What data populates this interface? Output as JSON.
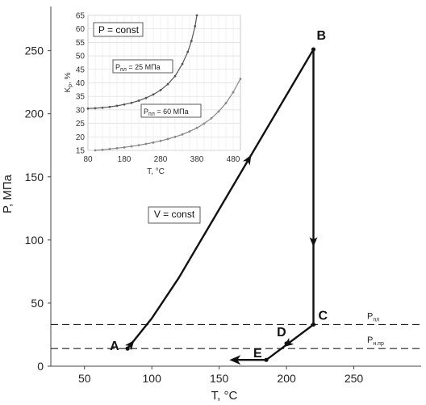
{
  "chart_data": [
    {
      "type": "line",
      "xlabel": "T, °C",
      "ylabel": "P, МПа",
      "xlim": [
        25,
        300
      ],
      "ylim": [
        0,
        285
      ],
      "x_ticks": [
        50,
        100,
        150,
        200,
        250
      ],
      "y_ticks": [
        0,
        50,
        100,
        150,
        200,
        250
      ],
      "grid": false,
      "annotation": "V = const",
      "points": [
        {
          "label": "A",
          "x": 82,
          "y": 14
        },
        {
          "label": "B",
          "x": 220,
          "y": 251
        },
        {
          "label": "C",
          "x": 220,
          "y": 33
        },
        {
          "label": "D",
          "x": 200,
          "y": 18
        },
        {
          "label": "E",
          "x": 185,
          "y": 5
        }
      ],
      "path": [
        {
          "x": 82,
          "y": 14
        },
        {
          "x": 100,
          "y": 38
        },
        {
          "x": 120,
          "y": 70
        },
        {
          "x": 220,
          "y": 251
        },
        {
          "x": 220,
          "y": 33
        },
        {
          "x": 185,
          "y": 5
        },
        {
          "x": 160,
          "y": 5
        }
      ],
      "reference_lines": [
        {
          "name_main": "P",
          "name_sub": "пл",
          "y": 33
        },
        {
          "name_main": "P",
          "name_sub": "н.пр",
          "y": 14
        }
      ]
    },
    {
      "type": "line",
      "title": "P = const",
      "xlabel": "T, °C",
      "ylabel_main": "K",
      "ylabel_sub": "р",
      "ylabel_unit": ", %",
      "xlim": [
        80,
        500
      ],
      "ylim": [
        15,
        65
      ],
      "x_ticks": [
        80,
        180,
        280,
        380,
        480
      ],
      "y_ticks": [
        15,
        20,
        25,
        30,
        35,
        40,
        45,
        50,
        55,
        60,
        65
      ],
      "grid": true,
      "series": [
        {
          "name_main": "P",
          "name_sub": "пл",
          "name_value": " = 25 МПа",
          "x": [
            80,
            100,
            120,
            140,
            160,
            180,
            200,
            220,
            240,
            260,
            280,
            300,
            320,
            340,
            355,
            365,
            375,
            380
          ],
          "y": [
            30.5,
            30.6,
            30.8,
            31.1,
            31.5,
            32.0,
            32.6,
            33.4,
            34.4,
            35.7,
            37.3,
            39.5,
            42.5,
            47.0,
            51.5,
            55.5,
            61.0,
            65.0
          ]
        },
        {
          "name_main": "P",
          "name_sub": "пл",
          "name_value": " = 60 МПа",
          "x": [
            100,
            120,
            140,
            160,
            180,
            200,
            220,
            240,
            260,
            280,
            300,
            320,
            340,
            360,
            380,
            400,
            420,
            440,
            460,
            480,
            500
          ],
          "y": [
            15.0,
            15.2,
            15.5,
            15.8,
            16.1,
            16.5,
            16.9,
            17.4,
            17.9,
            18.5,
            19.2,
            20.0,
            20.9,
            22.0,
            23.3,
            24.9,
            26.9,
            29.4,
            32.5,
            36.5,
            41.5
          ]
        }
      ]
    }
  ]
}
